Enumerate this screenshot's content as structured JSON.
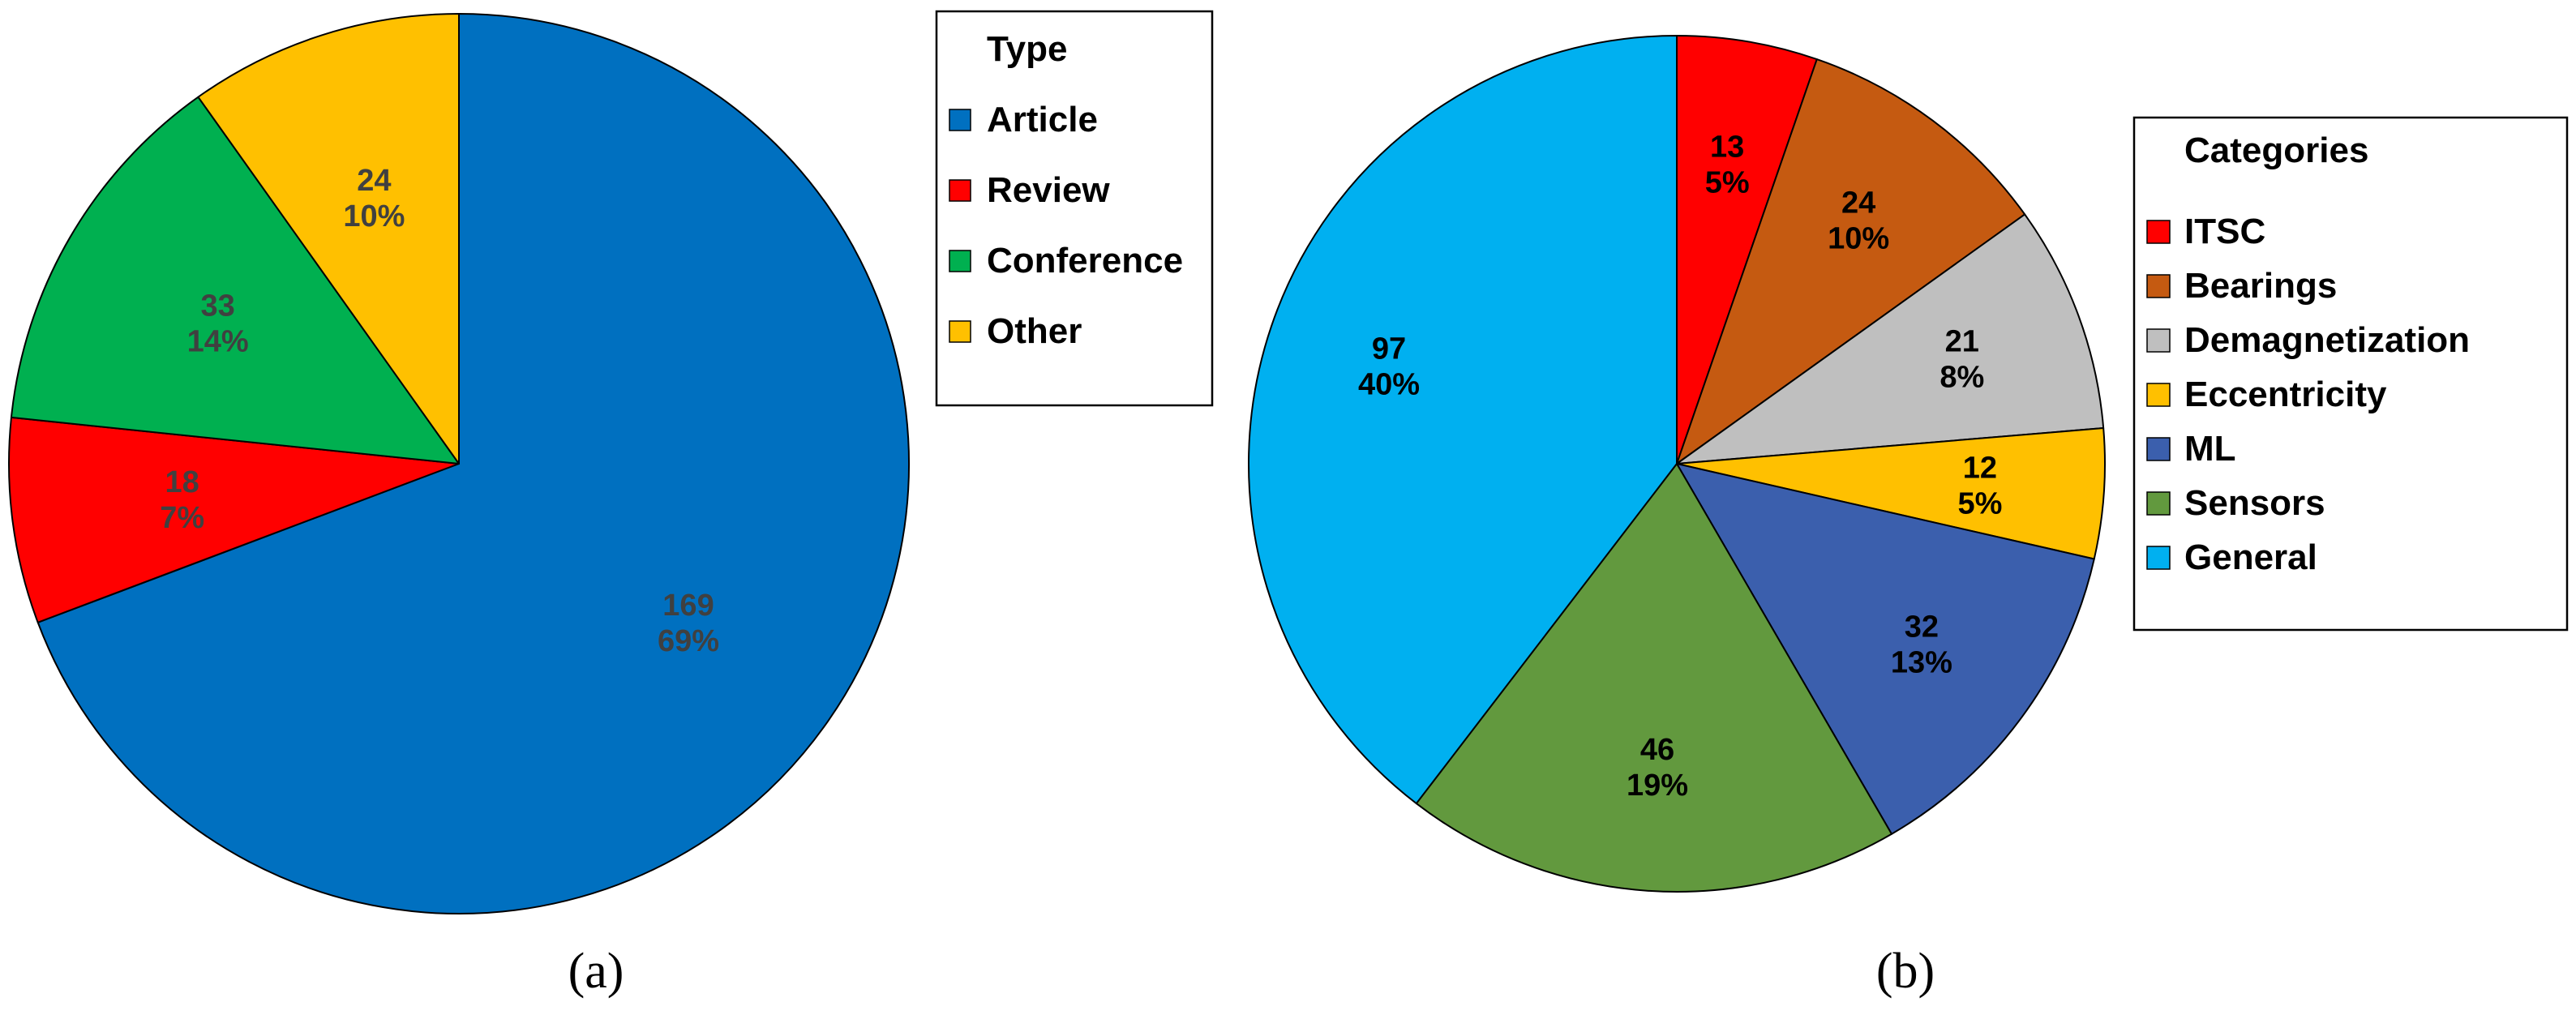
{
  "chart_data": [
    {
      "type": "pie",
      "panel_label": "(a)",
      "legend": {
        "title": "Type",
        "placement": "right"
      },
      "label_color": "#404040",
      "slices": [
        {
          "name": "Article",
          "value": 169,
          "percent": "69%",
          "color": "#0070C0"
        },
        {
          "name": "Review",
          "value": 18,
          "percent": "7%",
          "color": "#FF0000"
        },
        {
          "name": "Conference",
          "value": 33,
          "percent": "14%",
          "color": "#00B050"
        },
        {
          "name": "Other",
          "value": 24,
          "percent": "10%",
          "color": "#FFC000"
        }
      ]
    },
    {
      "type": "pie",
      "panel_label": "(b)",
      "legend": {
        "title": "Categories",
        "placement": "right"
      },
      "label_color": "#000000",
      "slices": [
        {
          "name": "ITSC",
          "value": 13,
          "percent": "5%",
          "color": "#FF0000"
        },
        {
          "name": "Bearings",
          "value": 24,
          "percent": "10%",
          "color": "#C55A11"
        },
        {
          "name": "Demagnetization",
          "value": 21,
          "percent": "8%",
          "color": "#BFBFBF"
        },
        {
          "name": "Eccentricity",
          "value": 12,
          "percent": "5%",
          "color": "#FFC000"
        },
        {
          "name": "ML",
          "value": 32,
          "percent": "13%",
          "color": "#3B5FAD"
        },
        {
          "name": "Sensors",
          "value": 46,
          "percent": "19%",
          "color": "#62993E"
        },
        {
          "name": "General",
          "value": 97,
          "percent": "40%",
          "color": "#00B0F0"
        }
      ]
    }
  ]
}
